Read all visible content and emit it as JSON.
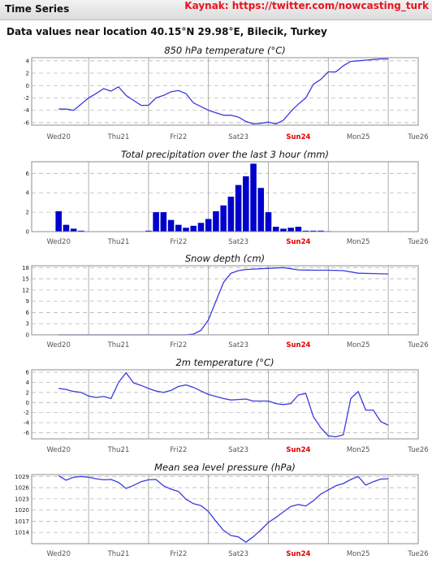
{
  "header": {
    "title": "Time Series",
    "source": "Kaynak: https://twitter.com/nowcasting_turk"
  },
  "location_text": "Data values near location 40.15°N 29.98°E, Bilecik, Turkey",
  "colors": {
    "line": "#3a3ae0",
    "bar": "#0000cc",
    "highlight_day": "#e00000"
  },
  "chart_data": [
    {
      "type": "line",
      "title": "850 hPa temperature (°C)",
      "categories": [
        "Wed20",
        "Thu21",
        "Fri22",
        "Sat23",
        "Sun24",
        "Mon25",
        "Tue26"
      ],
      "highlight_category": "Sun24",
      "x_range": [
        -0.45,
        6.0
      ],
      "ylim": [
        -6.4,
        4.5
      ],
      "yticks": [
        -6,
        -4,
        -2,
        0,
        2,
        4
      ],
      "grid": true,
      "x": [
        0,
        0.125,
        0.25,
        0.375,
        0.5,
        0.625,
        0.75,
        0.875,
        1.0,
        1.125,
        1.25,
        1.375,
        1.5,
        1.625,
        1.75,
        1.875,
        2.0,
        2.125,
        2.25,
        2.375,
        2.5,
        2.625,
        2.75,
        2.875,
        3.0,
        3.125,
        3.25,
        3.375,
        3.5,
        3.625,
        3.75,
        3.875,
        4.0,
        4.125,
        4.25,
        4.375,
        4.5,
        4.625,
        4.75,
        4.875,
        5.0,
        5.125,
        5.25,
        5.375,
        5.5
      ],
      "values": [
        -3.8,
        -3.8,
        -4.0,
        -3.0,
        -2.0,
        -1.3,
        -0.5,
        -0.9,
        -0.2,
        -1.6,
        -2.4,
        -3.2,
        -3.2,
        -2.0,
        -1.6,
        -1.0,
        -0.8,
        -1.3,
        -2.8,
        -3.4,
        -4.0,
        -4.4,
        -4.8,
        -4.8,
        -5.1,
        -5.8,
        -6.2,
        -6.1,
        -5.9,
        -6.2,
        -5.6,
        -4.2,
        -3.0,
        -2.0,
        0.2,
        1.0,
        2.2,
        2.2,
        3.2,
        3.9,
        4.0,
        4.1,
        4.2,
        4.3,
        4.3
      ]
    },
    {
      "type": "bar",
      "title": "Total precipitation over the last 3 hour (mm)",
      "categories": [
        "Wed20",
        "Thu21",
        "Fri22",
        "Sat23",
        "Sun24",
        "Mon25",
        "Tue26"
      ],
      "highlight_category": "Sun24",
      "x_range": [
        -0.45,
        6.0
      ],
      "ylim": [
        0,
        7.2
      ],
      "yticks": [
        0,
        2,
        4,
        6
      ],
      "grid": true,
      "x": [
        0,
        0.125,
        0.25,
        0.375,
        0.5,
        0.625,
        0.75,
        0.875,
        1.0,
        1.125,
        1.25,
        1.375,
        1.5,
        1.625,
        1.75,
        1.875,
        2.0,
        2.125,
        2.25,
        2.375,
        2.5,
        2.625,
        2.75,
        2.875,
        3.0,
        3.125,
        3.25,
        3.375,
        3.5,
        3.625,
        3.75,
        3.875,
        4.0,
        4.125,
        4.25,
        4.375,
        4.5
      ],
      "values": [
        2.1,
        0.7,
        0.3,
        0.1,
        0.0,
        0.0,
        0.0,
        0.0,
        0.0,
        0.0,
        0.0,
        0.0,
        0.1,
        2.0,
        2.0,
        1.2,
        0.7,
        0.4,
        0.6,
        0.9,
        1.3,
        2.1,
        2.7,
        3.6,
        4.8,
        5.7,
        7.0,
        4.5,
        2.0,
        0.5,
        0.3,
        0.4,
        0.5,
        0.1,
        0.1,
        0.1,
        0.05
      ]
    },
    {
      "type": "line",
      "title": "Snow depth (cm)",
      "categories": [
        "Wed20",
        "Thu21",
        "Fri22",
        "Sat23",
        "Sun24",
        "Mon25",
        "Tue26"
      ],
      "highlight_category": "Sun24",
      "x_range": [
        -0.45,
        6.0
      ],
      "ylim": [
        0,
        18.5
      ],
      "yticks": [
        0,
        3,
        6,
        9,
        12,
        15,
        18
      ],
      "grid": true,
      "x": [
        0,
        0.25,
        0.5,
        0.75,
        1.0,
        1.25,
        1.5,
        1.75,
        2.0,
        2.125,
        2.25,
        2.375,
        2.5,
        2.625,
        2.75,
        2.875,
        3.0,
        3.125,
        3.25,
        3.5,
        3.75,
        4.0,
        4.25,
        4.5,
        4.75,
        5.0,
        5.25,
        5.5
      ],
      "values": [
        0,
        0,
        0,
        0,
        0,
        0,
        0,
        0,
        0,
        0,
        0.2,
        1.2,
        4.0,
        9.0,
        14.0,
        16.5,
        17.2,
        17.5,
        17.6,
        17.8,
        18.0,
        17.4,
        17.3,
        17.3,
        17.2,
        16.5,
        16.4,
        16.3
      ]
    },
    {
      "type": "line",
      "title": "2m temperature (°C)",
      "categories": [
        "Wed20",
        "Thu21",
        "Fri22",
        "Sat23",
        "Sun24",
        "Mon25",
        "Tue26"
      ],
      "highlight_category": "Sun24",
      "x_range": [
        -0.45,
        6.0
      ],
      "ylim": [
        -7.2,
        6.5
      ],
      "yticks": [
        -6,
        -4,
        -2,
        0,
        2,
        4,
        6
      ],
      "grid": true,
      "x": [
        0,
        0.125,
        0.25,
        0.375,
        0.5,
        0.625,
        0.75,
        0.875,
        1.0,
        1.125,
        1.25,
        1.375,
        1.5,
        1.625,
        1.75,
        1.875,
        2.0,
        2.125,
        2.25,
        2.375,
        2.5,
        2.625,
        2.75,
        2.875,
        3.0,
        3.125,
        3.25,
        3.375,
        3.5,
        3.625,
        3.75,
        3.875,
        4.0,
        4.125,
        4.25,
        4.375,
        4.5,
        4.625,
        4.75,
        4.875,
        5.0,
        5.125,
        5.25,
        5.375,
        5.5
      ],
      "values": [
        2.8,
        2.6,
        2.2,
        2.0,
        1.3,
        1.0,
        1.2,
        0.8,
        4.0,
        5.9,
        3.9,
        3.4,
        2.8,
        2.3,
        2.0,
        2.4,
        3.2,
        3.5,
        3.0,
        2.3,
        1.6,
        1.2,
        0.8,
        0.5,
        0.6,
        0.7,
        0.3,
        0.3,
        0.3,
        -0.2,
        -0.4,
        -0.2,
        1.5,
        1.8,
        -2.8,
        -5.0,
        -6.6,
        -6.8,
        -6.4,
        0.8,
        2.2,
        -1.5,
        -1.5,
        -3.8,
        -4.5
      ]
    },
    {
      "type": "line",
      "title": "Mean sea level pressure (hPa)",
      "categories": [
        "Wed20",
        "Thu21",
        "Fri22",
        "Sat23",
        "Sun24",
        "Mon25",
        "Tue26"
      ],
      "highlight_category": "Sun24",
      "x_range": [
        -0.45,
        6.0
      ],
      "ylim": [
        1011,
        1029.5
      ],
      "yticks": [
        1014,
        1017,
        1020,
        1023,
        1026,
        1029
      ],
      "grid": true,
      "x": [
        0,
        0.125,
        0.25,
        0.375,
        0.5,
        0.625,
        0.75,
        0.875,
        1.0,
        1.125,
        1.25,
        1.375,
        1.5,
        1.625,
        1.75,
        1.875,
        2.0,
        2.125,
        2.25,
        2.375,
        2.5,
        2.625,
        2.75,
        2.875,
        3.0,
        3.125,
        3.25,
        3.375,
        3.5,
        3.625,
        3.75,
        3.875,
        4.0,
        4.125,
        4.25,
        4.375,
        4.5,
        4.625,
        4.75,
        4.875,
        5.0,
        5.125,
        5.25,
        5.375,
        5.5
      ],
      "values": [
        1029.2,
        1028.0,
        1028.8,
        1029.0,
        1028.8,
        1028.4,
        1028.1,
        1028.2,
        1027.4,
        1025.8,
        1026.6,
        1027.6,
        1028.1,
        1028.2,
        1026.5,
        1025.6,
        1025.0,
        1022.9,
        1021.7,
        1021.2,
        1019.6,
        1017.0,
        1014.6,
        1013.2,
        1012.8,
        1011.4,
        1012.9,
        1014.7,
        1016.7,
        1018.0,
        1019.5,
        1021.0,
        1021.5,
        1021.1,
        1022.5,
        1024.3,
        1025.4,
        1026.5,
        1027.1,
        1028.2,
        1029.0,
        1026.7,
        1027.6,
        1028.3,
        1028.4
      ]
    }
  ]
}
